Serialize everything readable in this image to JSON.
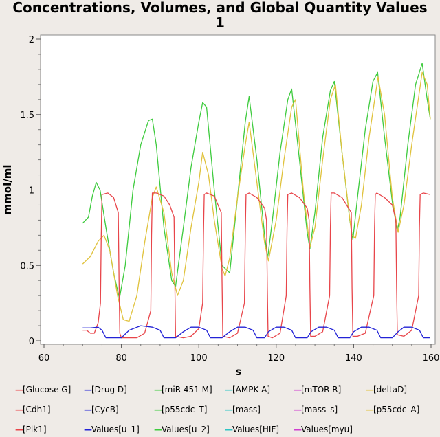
{
  "chart_data": {
    "type": "line",
    "title_line1": "Concentrations, Volumes, and Global Quantity Values",
    "title_line2": "1",
    "xlabel": "s",
    "ylabel": "mmol/ml",
    "xlim": [
      60,
      160
    ],
    "ylim": [
      0,
      2
    ],
    "x_ticks": [
      "60",
      "80",
      "100",
      "120",
      "140",
      "160"
    ],
    "y_ticks": [
      "0",
      "0.5",
      "1",
      "1.5",
      "2"
    ],
    "grid": false,
    "legend_position": "bottom",
    "legend": [
      {
        "label": "[Glucose G]",
        "color": "#e8454a"
      },
      {
        "label": "[Drug D]",
        "color": "#2323d6"
      },
      {
        "label": "[miR-451 M]",
        "color": "#3ecb3e"
      },
      {
        "label": "[AMPK A]",
        "color": "#2ec4c4"
      },
      {
        "label": "[mTOR R]",
        "color": "#cf3ecf"
      },
      {
        "label": "[deltaD]",
        "color": "#e0c23c"
      },
      {
        "label": "[Cdh1]",
        "color": "#e8454a"
      },
      {
        "label": "[CycB]",
        "color": "#2323d6"
      },
      {
        "label": "[p55cdc_T]",
        "color": "#3ecb3e"
      },
      {
        "label": "[mass]",
        "color": "#2ec4c4"
      },
      {
        "label": "[mass_s]",
        "color": "#cf3ecf"
      },
      {
        "label": "[p55cdc_A]",
        "color": "#e0c23c"
      },
      {
        "label": "[Plk1]",
        "color": "#e8454a"
      },
      {
        "label": "Values[u_1]",
        "color": "#2323d6"
      },
      {
        "label": "Values[u_2]",
        "color": "#3ecb3e"
      },
      {
        "label": "Values[HIF]",
        "color": "#2ec4c4"
      },
      {
        "label": "Values[myu]",
        "color": "#cf3ecf"
      }
    ],
    "series": [
      {
        "legend_label": "[p55cdc_T]",
        "color": "#3ecb3e",
        "x": [
          70,
          71.5,
          72.5,
          73.5,
          74.5,
          76,
          78,
          79.5,
          81,
          83,
          85,
          87,
          88,
          89,
          91,
          93,
          94,
          96,
          98,
          100,
          101,
          102,
          104,
          106,
          108,
          110,
          112,
          113,
          115,
          117,
          117.8,
          119,
          121,
          123,
          124,
          126,
          128,
          128.7,
          130,
          132,
          134,
          135,
          137,
          139,
          139.8,
          141,
          143,
          145,
          146.2,
          148,
          150,
          151.3,
          152,
          154,
          156,
          157.7,
          159,
          159.8
        ],
        "y": [
          0.78,
          0.82,
          0.96,
          1.05,
          1.0,
          0.75,
          0.45,
          0.28,
          0.5,
          1.0,
          1.3,
          1.46,
          1.47,
          1.3,
          0.75,
          0.4,
          0.36,
          0.75,
          1.15,
          1.45,
          1.58,
          1.55,
          1.0,
          0.5,
          0.45,
          0.95,
          1.45,
          1.62,
          1.2,
          0.7,
          0.55,
          0.8,
          1.25,
          1.6,
          1.67,
          1.2,
          0.72,
          0.61,
          0.85,
          1.35,
          1.66,
          1.72,
          1.25,
          0.8,
          0.67,
          0.95,
          1.4,
          1.72,
          1.78,
          1.35,
          0.92,
          0.73,
          0.82,
          1.3,
          1.7,
          1.84,
          1.6,
          1.47
        ]
      },
      {
        "legend_label": "[p55cdc_A]",
        "color": "#e0c23c",
        "x": [
          70,
          72,
          74,
          75.5,
          77,
          79,
          80.5,
          82,
          84,
          86,
          88,
          89,
          91,
          93,
          94.5,
          96,
          98,
          100,
          101,
          102.5,
          104,
          106,
          106.8,
          108,
          110,
          112,
          113,
          115,
          117,
          118,
          120,
          122,
          124,
          125,
          127,
          128.7,
          130,
          132,
          134,
          135.3,
          137,
          139.5,
          140.5,
          142,
          144,
          146.3,
          148,
          150,
          151.5,
          153,
          155,
          157.7,
          159,
          159.8
        ],
        "y": [
          0.51,
          0.56,
          0.66,
          0.7,
          0.6,
          0.3,
          0.14,
          0.13,
          0.3,
          0.65,
          0.95,
          1.02,
          0.85,
          0.45,
          0.3,
          0.4,
          0.75,
          1.05,
          1.25,
          1.1,
          0.8,
          0.48,
          0.43,
          0.55,
          0.95,
          1.3,
          1.45,
          1.05,
          0.65,
          0.53,
          0.8,
          1.2,
          1.55,
          1.6,
          1.0,
          0.62,
          0.75,
          1.2,
          1.6,
          1.7,
          1.25,
          0.7,
          0.68,
          0.9,
          1.35,
          1.75,
          1.5,
          0.95,
          0.72,
          0.9,
          1.3,
          1.78,
          1.7,
          1.47
        ]
      },
      {
        "legend_label": "[Cdh1]",
        "color": "#e8454a",
        "x": [
          70,
          71,
          72,
          73,
          74,
          74.6,
          74.8,
          75,
          76.5,
          78,
          79.2,
          79.4,
          79.6,
          80,
          82,
          84,
          86,
          87.6,
          87.8,
          88,
          89,
          91,
          92.5,
          93.6,
          93.8,
          94,
          96,
          98,
          100,
          101,
          101.2,
          101.4,
          102,
          104,
          105.8,
          106,
          106.2,
          108,
          110,
          111.8,
          112,
          112.2,
          113,
          115,
          117,
          117.5,
          117.7,
          117.9,
          119,
          121,
          122.6,
          122.8,
          123,
          124,
          126,
          128,
          128.5,
          128.7,
          128.9,
          130,
          132,
          133.8,
          134,
          134.2,
          135,
          137,
          139.4,
          139.6,
          139.8,
          141,
          143,
          145.2,
          145.4,
          145.6,
          146,
          148,
          150,
          150.9,
          151.1,
          151.3,
          153,
          155,
          156.8,
          157,
          157.2,
          158,
          159.8
        ],
        "y": [
          0.07,
          0.07,
          0.05,
          0.05,
          0.12,
          0.25,
          0.7,
          0.97,
          0.98,
          0.95,
          0.85,
          0.4,
          0.05,
          0.02,
          0.02,
          0.02,
          0.05,
          0.2,
          0.7,
          0.98,
          0.98,
          0.96,
          0.9,
          0.82,
          0.4,
          0.03,
          0.02,
          0.03,
          0.08,
          0.25,
          0.7,
          0.97,
          0.98,
          0.96,
          0.85,
          0.4,
          0.03,
          0.02,
          0.05,
          0.25,
          0.7,
          0.97,
          0.98,
          0.95,
          0.88,
          0.8,
          0.35,
          0.03,
          0.02,
          0.05,
          0.3,
          0.75,
          0.97,
          0.98,
          0.95,
          0.88,
          0.8,
          0.35,
          0.03,
          0.03,
          0.06,
          0.3,
          0.75,
          0.98,
          0.98,
          0.95,
          0.85,
          0.35,
          0.03,
          0.03,
          0.05,
          0.3,
          0.75,
          0.97,
          0.98,
          0.95,
          0.9,
          0.8,
          0.35,
          0.04,
          0.03,
          0.07,
          0.3,
          0.75,
          0.97,
          0.98,
          0.97
        ]
      },
      {
        "legend_label": "[CycB]",
        "color": "#2323d6",
        "x": [
          70,
          72,
          74,
          75,
          76,
          80,
          82,
          85,
          88,
          90,
          91,
          94,
          96,
          98,
          100,
          102,
          103,
          106,
          108,
          110,
          112,
          114,
          115,
          117,
          118,
          120,
          122,
          124,
          125,
          128,
          129,
          131,
          133,
          135,
          136,
          139,
          140,
          142,
          144,
          146,
          147,
          150,
          151.5,
          153,
          155,
          157,
          158,
          159.8
        ],
        "y": [
          0.085,
          0.085,
          0.09,
          0.07,
          0.02,
          0.02,
          0.07,
          0.1,
          0.09,
          0.07,
          0.02,
          0.02,
          0.06,
          0.09,
          0.09,
          0.07,
          0.02,
          0.02,
          0.06,
          0.09,
          0.09,
          0.07,
          0.02,
          0.02,
          0.06,
          0.09,
          0.09,
          0.07,
          0.02,
          0.02,
          0.06,
          0.09,
          0.09,
          0.07,
          0.02,
          0.02,
          0.06,
          0.09,
          0.09,
          0.07,
          0.02,
          0.02,
          0.06,
          0.09,
          0.09,
          0.07,
          0.02,
          0.02
        ]
      }
    ]
  }
}
